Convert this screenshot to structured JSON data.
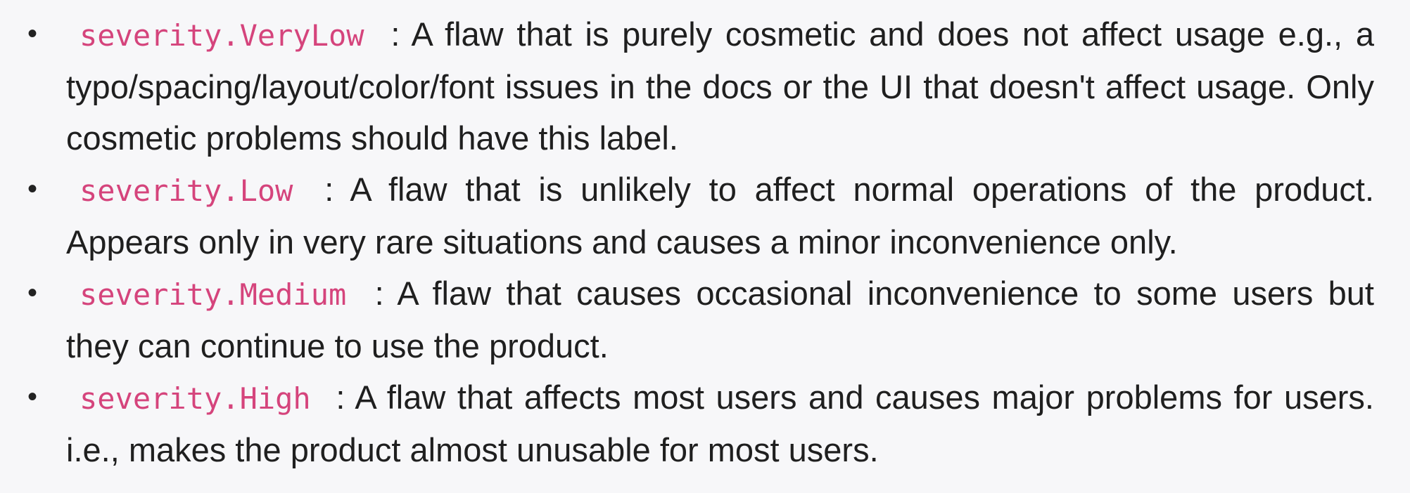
{
  "colors": {
    "page_background": "#f7f7f9",
    "body_text": "#1f1f1f",
    "code_text": "#d5447c"
  },
  "list": {
    "items": [
      {
        "bullet": "•",
        "code": "severity.VeryLow",
        "description": ": A flaw that is purely cosmetic and does not affect usage e.g., a typo/spacing/layout/color/font issues in the docs or the UI that doesn't affect usage. Only cosmetic problems should have this label."
      },
      {
        "bullet": "•",
        "code": "severity.Low",
        "description": ": A flaw that is unlikely to affect normal operations of the product. Appears only in very rare situations and causes a minor inconvenience only."
      },
      {
        "bullet": "•",
        "code": "severity.Medium",
        "description": ": A flaw that causes occasional inconvenience to some users but they can continue to use the product."
      },
      {
        "bullet": "•",
        "code": "severity.High",
        "description": ": A flaw that affects most users and causes major problems for users. i.e., makes the product almost unusable for most users."
      }
    ]
  }
}
